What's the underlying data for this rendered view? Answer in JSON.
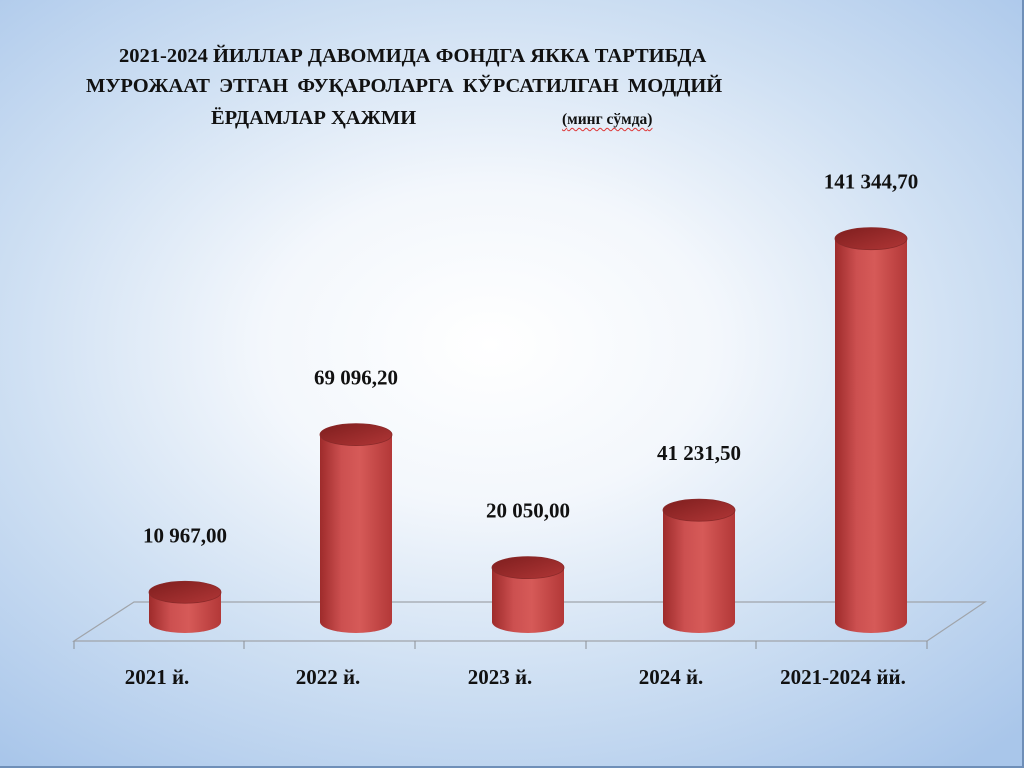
{
  "title": {
    "line1": "2021-2024 ЙИЛЛАР ДАВОМИДА ФОНДГА  ЯККА ТАРТИБДА",
    "line2": "МУРОЖААТ  ЭТГАН   ФУҚАРОЛАРГА  КЎРСАТИЛГАН  МОДДИЙ",
    "line3": "ЁРДАМЛАР  ҲАЖМИ",
    "unit_open": "(",
    "unit_word": "минг сўмда",
    "unit_close": ")"
  },
  "colors": {
    "bar_main": "#c94a4a",
    "bar_dark": "#8e2424",
    "bar_top": "#b23838",
    "background_center": "#ffffff",
    "background_edge": "#a9c6ea"
  },
  "chart_data": {
    "type": "bar",
    "bar_shape": "cylinder",
    "categories": [
      "2021 й.",
      "2022 й.",
      "2023 й.",
      "2024 й.",
      "2021-2024 йй."
    ],
    "values": [
      10967.0,
      69096.2,
      20050.0,
      41231.5,
      141344.7
    ],
    "data_labels": [
      "10 967,00",
      "69 096,20",
      "20 050,00",
      "41 231,50",
      "141 344,70"
    ],
    "grid": false,
    "legend": "none"
  }
}
